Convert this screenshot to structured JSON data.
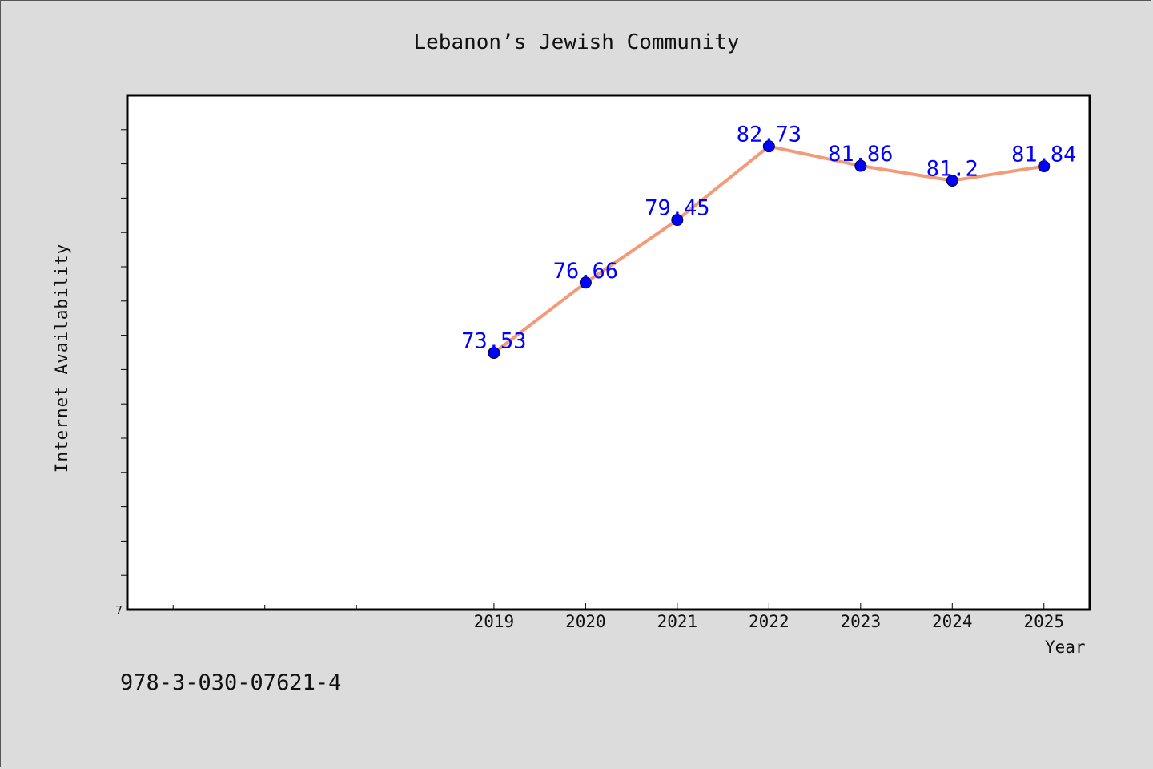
{
  "title": "Lebanon’s Jewish Community",
  "footnote": "978-3-030-07621-4",
  "colors": {
    "background": "#dcdcdc",
    "plot_background": "#ffffff",
    "line": "#f59a78",
    "marker": "#0000ff",
    "data_label": "#0000ff"
  },
  "chart_data": {
    "type": "line",
    "title": "Lebanon’s Jewish Community",
    "xlabel": "Year",
    "ylabel": "Internet Availability",
    "y_tick_labels": [
      "7"
    ],
    "x": [
      "2019",
      "2020",
      "2021",
      "2022",
      "2023",
      "2024",
      "2025"
    ],
    "series": [
      {
        "values": [
          73.53,
          76.66,
          79.45,
          82.73,
          81.86,
          81.2,
          81.84
        ]
      }
    ],
    "data_labels": [
      "73.53",
      "76.66",
      "79.45",
      "82.73",
      "81.86",
      "81.2",
      "81.84"
    ],
    "xlim": [
      2015,
      2025.5
    ],
    "ylim": [
      62.1,
      85.0
    ],
    "grid": false,
    "legend": "none"
  }
}
